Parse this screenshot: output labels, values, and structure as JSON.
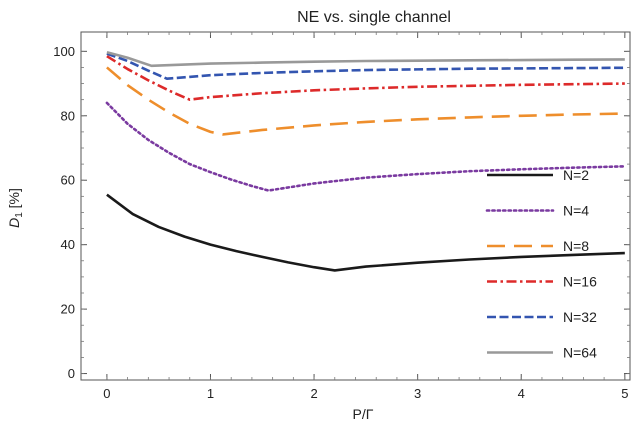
{
  "chart_data": {
    "type": "line",
    "title": "NE vs. single channel",
    "xlabel": "P/Γ",
    "ylabel_main": "D",
    "ylabel_sub": "1",
    "ylabel_unit": " [%]",
    "xlim": [
      -0.25,
      5.05
    ],
    "ylim": [
      -2,
      106
    ],
    "xticks": [
      0,
      1,
      2,
      3,
      4,
      5
    ],
    "yticks": [
      0,
      20,
      40,
      60,
      80,
      100
    ],
    "legend_position": "right",
    "series": [
      {
        "name": "N=2",
        "color": "#1a1a1a",
        "dash": "solid",
        "points": [
          [
            0,
            55.5
          ],
          [
            0.25,
            49.5
          ],
          [
            0.5,
            45.5
          ],
          [
            0.75,
            42.5
          ],
          [
            1.0,
            40.0
          ],
          [
            1.25,
            38.0
          ],
          [
            1.5,
            36.2
          ],
          [
            1.75,
            34.5
          ],
          [
            2.0,
            33.0
          ],
          [
            2.2,
            32.0
          ],
          [
            2.5,
            33.2
          ],
          [
            3.0,
            34.4
          ],
          [
            3.5,
            35.4
          ],
          [
            4.0,
            36.2
          ],
          [
            4.5,
            36.8
          ],
          [
            5.0,
            37.4
          ]
        ]
      },
      {
        "name": "N=4",
        "color": "#7a3aa0",
        "dash": "dotted",
        "points": [
          [
            0,
            84.0
          ],
          [
            0.2,
            77.5
          ],
          [
            0.4,
            72.5
          ],
          [
            0.6,
            68.5
          ],
          [
            0.8,
            65.0
          ],
          [
            1.0,
            62.5
          ],
          [
            1.2,
            60.2
          ],
          [
            1.4,
            58.2
          ],
          [
            1.56,
            56.8
          ],
          [
            2.0,
            59.0
          ],
          [
            2.5,
            60.8
          ],
          [
            3.0,
            61.9
          ],
          [
            3.5,
            62.8
          ],
          [
            4.0,
            63.4
          ],
          [
            4.5,
            63.9
          ],
          [
            5.0,
            64.3
          ]
        ]
      },
      {
        "name": "N=8",
        "color": "#ee8e2c",
        "dash": "long-dash",
        "points": [
          [
            0,
            95.0
          ],
          [
            0.2,
            89.5
          ],
          [
            0.4,
            85.0
          ],
          [
            0.6,
            81.0
          ],
          [
            0.8,
            77.5
          ],
          [
            1.0,
            75.0
          ],
          [
            1.12,
            74.2
          ],
          [
            1.5,
            75.6
          ],
          [
            2.0,
            77.0
          ],
          [
            2.5,
            78.1
          ],
          [
            3.0,
            78.9
          ],
          [
            3.5,
            79.5
          ],
          [
            4.0,
            80.0
          ],
          [
            4.5,
            80.4
          ],
          [
            5.0,
            80.7
          ]
        ]
      },
      {
        "name": "N=16",
        "color": "#dd2a2a",
        "dash": "dash-dot",
        "points": [
          [
            0,
            98.5
          ],
          [
            0.2,
            94.5
          ],
          [
            0.4,
            91.0
          ],
          [
            0.6,
            87.8
          ],
          [
            0.8,
            85.0
          ],
          [
            1.0,
            85.8
          ],
          [
            1.5,
            87.0
          ],
          [
            2.0,
            87.9
          ],
          [
            2.5,
            88.5
          ],
          [
            3.0,
            89.0
          ],
          [
            3.5,
            89.3
          ],
          [
            4.0,
            89.6
          ],
          [
            4.5,
            89.8
          ],
          [
            5.0,
            90.0
          ]
        ]
      },
      {
        "name": "N=32",
        "color": "#3355b0",
        "dash": "dashed",
        "points": [
          [
            0,
            99.3
          ],
          [
            0.2,
            97.0
          ],
          [
            0.4,
            94.0
          ],
          [
            0.58,
            91.5
          ],
          [
            1.0,
            92.6
          ],
          [
            1.5,
            93.3
          ],
          [
            2.0,
            93.8
          ],
          [
            2.5,
            94.2
          ],
          [
            3.0,
            94.4
          ],
          [
            3.5,
            94.6
          ],
          [
            4.0,
            94.7
          ],
          [
            4.5,
            94.8
          ],
          [
            5.0,
            94.9
          ]
        ]
      },
      {
        "name": "N=64",
        "color": "#999999",
        "dash": "solid",
        "points": [
          [
            0,
            99.7
          ],
          [
            0.2,
            98.0
          ],
          [
            0.43,
            95.5
          ],
          [
            1.0,
            96.2
          ],
          [
            1.5,
            96.5
          ],
          [
            2.0,
            96.8
          ],
          [
            2.5,
            97.0
          ],
          [
            3.0,
            97.1
          ],
          [
            3.5,
            97.2
          ],
          [
            4.0,
            97.3
          ],
          [
            4.5,
            97.4
          ],
          [
            5.0,
            97.5
          ]
        ]
      }
    ]
  }
}
